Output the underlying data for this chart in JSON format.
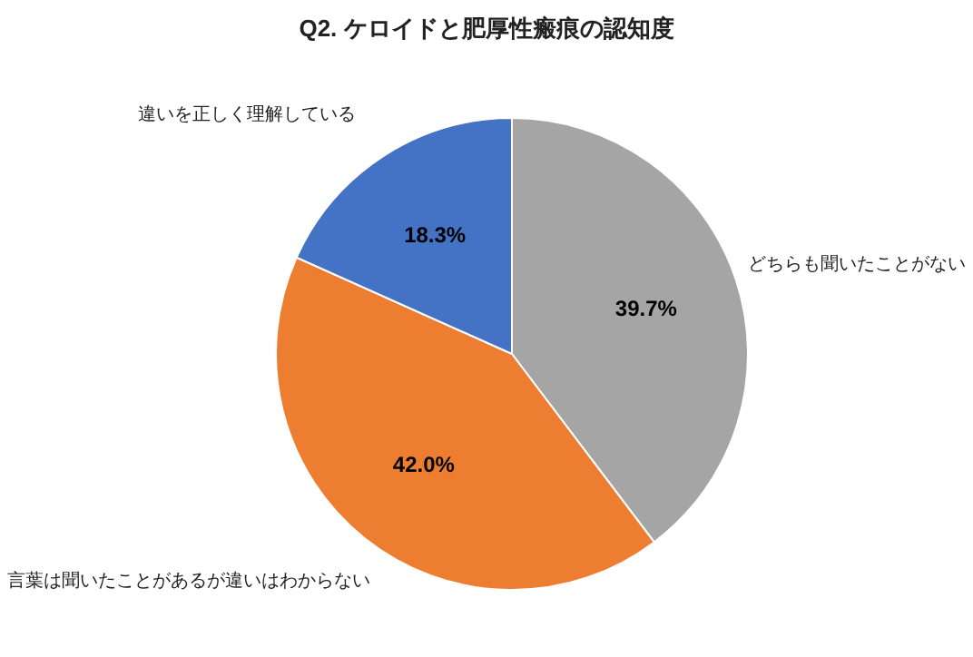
{
  "chart_data": {
    "type": "pie",
    "title": "Q2. ケロイドと肥厚性瘢痕の認知度",
    "categories": [
      "どちらも聞いたことがない",
      "言葉は聞いたことがあるが違いはわからない",
      "違いを正しく理解している"
    ],
    "values": [
      39.7,
      42.0,
      18.3
    ],
    "colors": [
      "#a5a5a5",
      "#ed7d31",
      "#4472c4"
    ],
    "value_labels": [
      "39.7%",
      "42.0%",
      "18.3%"
    ],
    "legend": false
  }
}
